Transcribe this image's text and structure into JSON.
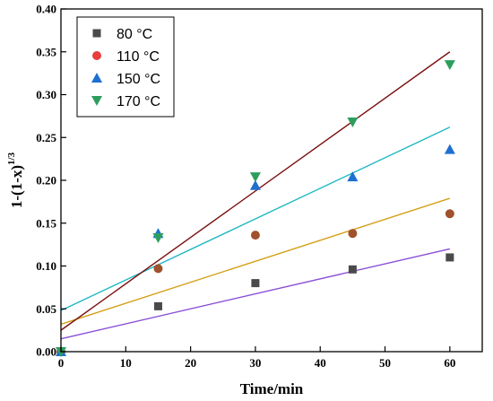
{
  "chart_data": {
    "type": "scatter",
    "xlabel": "Time/min",
    "ylabel_main": "1-(1-x)",
    "ylabel_sup": "1/3",
    "xlim": [
      0,
      65
    ],
    "ylim": [
      0,
      0.4
    ],
    "xticks": [
      0,
      10,
      20,
      30,
      40,
      50,
      60
    ],
    "yticks": [
      0.0,
      0.05,
      0.1,
      0.15,
      0.2,
      0.25,
      0.3,
      0.35,
      0.4
    ],
    "grid": false,
    "legend": "top-left",
    "series": [
      {
        "name": "80 °C",
        "marker": "square",
        "color": "#4a4a4a",
        "x": [
          0,
          15,
          30,
          45,
          60
        ],
        "y": [
          0.0,
          0.053,
          0.08,
          0.096,
          0.11
        ],
        "fit": {
          "y0": 0.015,
          "y1": 0.12,
          "color": "#8a4fd6"
        }
      },
      {
        "name": "110 °C",
        "marker": "circle",
        "color": "#a0522d",
        "x": [
          0,
          15,
          30,
          45,
          60
        ],
        "y": [
          0.0,
          0.097,
          0.136,
          0.138,
          0.161
        ],
        "fit": {
          "y0": 0.032,
          "y1": 0.179,
          "color": "#d4a017"
        }
      },
      {
        "name": "150 °C",
        "marker": "triangle-up",
        "color": "#1f6fd1",
        "x": [
          0,
          15,
          30,
          45,
          60
        ],
        "y": [
          0.0,
          0.138,
          0.194,
          0.204,
          0.236
        ],
        "fit": {
          "y0": 0.048,
          "y1": 0.262,
          "color": "#1fb8c2"
        }
      },
      {
        "name": "170 °C",
        "marker": "triangle-down",
        "color": "#2e9e5e",
        "x": [
          0,
          15,
          30,
          45,
          60
        ],
        "y": [
          0.0,
          0.133,
          0.204,
          0.268,
          0.335
        ],
        "fit": {
          "y0": 0.025,
          "y1": 0.35,
          "color": "#7a0f0f"
        }
      }
    ],
    "legend_marker_colors": [
      "#4a4a4a",
      "#e83e3e",
      "#1f6fd1",
      "#2e9e5e"
    ]
  }
}
